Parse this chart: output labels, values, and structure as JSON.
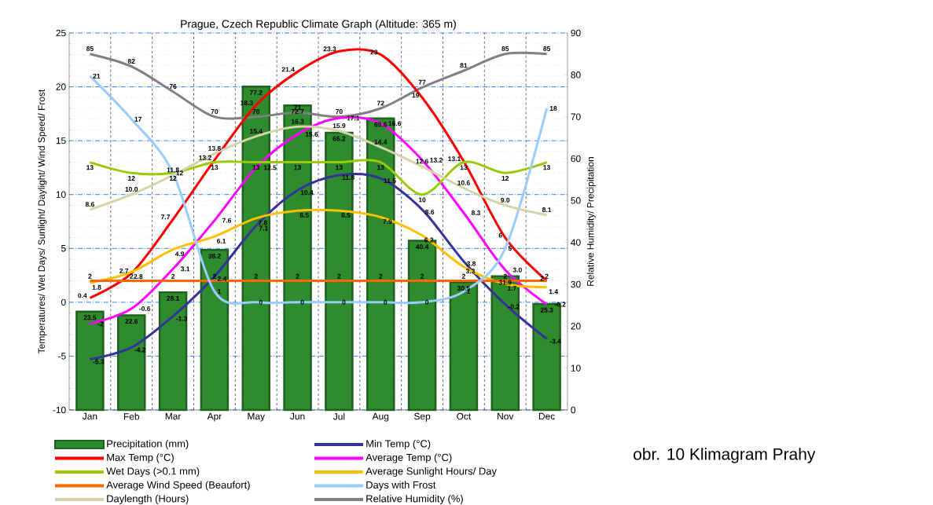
{
  "chart_data": {
    "type": "line",
    "title": "Prague, Czech Republic Climate Graph (Altitude: 365 m)",
    "ylabel": "Temperatures/ Wet Days/ Sunlight/ Daylight/ Wind Speed/ Frost",
    "y2label": "Relative Humidity/ Precipitation",
    "categories": [
      "Jan",
      "Feb",
      "Mar",
      "Apr",
      "May",
      "Jun",
      "Jul",
      "Aug",
      "Sep",
      "Oct",
      "Nov",
      "Dec"
    ],
    "ylim": [
      -10,
      25
    ],
    "yticks": [
      -10,
      -5,
      0,
      5,
      10,
      15,
      20,
      25
    ],
    "y2lim": [
      0,
      90
    ],
    "y2ticks": [
      0,
      10,
      20,
      30,
      40,
      50,
      60,
      70,
      80,
      90
    ],
    "grid": true,
    "legend": "bottom",
    "annotations": [
      "obr. 10 Klimagram Prahy"
    ],
    "series": [
      {
        "name": "Precipitation (mm)",
        "type": "bar",
        "axis": "y2",
        "color": "#2e8b2e",
        "values": [
          23.5,
          22.6,
          28.1,
          38.2,
          77.2,
          72.7,
          66.2,
          69.6,
          40.4,
          30.5,
          31.9,
          25.3
        ],
        "value_labels": [
          "23.5",
          "22.6",
          "28.1",
          "38.2",
          "77.2",
          "72.7",
          "66.2",
          "69.6",
          "40.4",
          "30.5",
          "31.9",
          "25.3"
        ]
      },
      {
        "name": "Min Temp (°C)",
        "color": "#333399",
        "values": [
          -5.3,
          -4.2,
          -1.3,
          2.4,
          7.1,
          10.4,
          11.8,
          11.5,
          8.6,
          3.8,
          -0.2,
          -3.4
        ],
        "value_labels": [
          "-5.3",
          "-4.2",
          "-1.3",
          "2.4",
          "7.1",
          "10.4",
          "11.8",
          "11.5",
          "8.6",
          "3.8",
          "-0.2",
          "-3.4"
        ]
      },
      {
        "name": "Max Temp (°C)",
        "color": "#ff0000",
        "values": [
          0.4,
          2.7,
          7.7,
          13.2,
          18.3,
          21.4,
          23.3,
          23,
          19,
          13.1,
          6,
          2
        ],
        "value_labels": [
          "0.4",
          "2.7",
          "7.7",
          "13.2",
          "18.3",
          "21.4",
          "23.3",
          "23",
          "19",
          "13.1",
          "6",
          "2"
        ]
      },
      {
        "name": "Average Temp (°C)",
        "color": "#ff00ff",
        "values": [
          -2,
          -0.6,
          3.1,
          7.6,
          12.5,
          15.6,
          17.1,
          16.6,
          13.2,
          8.3,
          3.0,
          -0.2
        ],
        "value_labels": [
          "-2",
          "-0.6",
          "3.1",
          "7.6",
          "12.5",
          "15.6",
          "17.1",
          "16.6",
          "13.2",
          "8.3",
          "3.0",
          "-0.2"
        ]
      },
      {
        "name": "Wet Days (>0.1 mm)",
        "color": "#99cc00",
        "values": [
          13,
          12,
          12,
          13,
          13,
          13,
          13,
          13,
          10,
          13,
          12,
          13
        ],
        "value_labels": [
          "13",
          "12",
          "12",
          "13",
          "13",
          "13",
          "13",
          "13",
          "10",
          "13",
          "12",
          "13"
        ]
      },
      {
        "name": "Average Sunlight Hours/ Day",
        "color": "#ffc000",
        "values": [
          1.8,
          2.8,
          4.9,
          6.1,
          7.8,
          8.5,
          8.5,
          7.9,
          6.2,
          3.3,
          1.7,
          1.4
        ],
        "value_labels": [
          "1.8",
          "2.8",
          "4.9",
          "6.1",
          "7.8",
          "8.5",
          "8.5",
          "7.9",
          "6.2",
          "3.3",
          "1.7",
          "1.4"
        ]
      },
      {
        "name": "Average Wind Speed (Beaufort)",
        "color": "#ff6600",
        "values": [
          2,
          2,
          2,
          2,
          2,
          2,
          2,
          2,
          2,
          2,
          2,
          2
        ],
        "value_labels": [
          "2",
          "2",
          "2",
          "2",
          "2",
          "2",
          "2",
          "2",
          "2",
          "2",
          "2",
          "2"
        ]
      },
      {
        "name": "Days with Frost",
        "color": "#99ccff",
        "values": [
          21,
          17,
          12,
          1,
          0,
          0,
          0,
          0,
          0,
          1,
          5,
          18
        ],
        "value_labels": [
          "21",
          "17",
          "12",
          "1",
          "0",
          "0",
          "0",
          "0",
          "0",
          "1",
          "5",
          "18"
        ]
      },
      {
        "name": "Daylength (Hours)",
        "color": "#d4d4a8",
        "values": [
          8.6,
          10.0,
          11.8,
          13.8,
          15.4,
          16.3,
          15.9,
          14.4,
          12.6,
          10.6,
          9.0,
          8.1
        ],
        "value_labels": [
          "8.6",
          "10.0",
          "11.8",
          "13.8",
          "15.4",
          "16.3",
          "15.9",
          "14.4",
          "12.6",
          "10.6",
          "9.0",
          "8.1"
        ]
      },
      {
        "name": "Relative Humidity (%)",
        "axis": "y2",
        "color": "#808080",
        "values": [
          85,
          82,
          76,
          70,
          70,
          71,
          70,
          72,
          77,
          81,
          85,
          85
        ],
        "value_labels": [
          "85",
          "82",
          "76",
          "70",
          "70",
          "71",
          "70",
          "72",
          "77",
          "81",
          "85",
          "85"
        ]
      }
    ]
  }
}
